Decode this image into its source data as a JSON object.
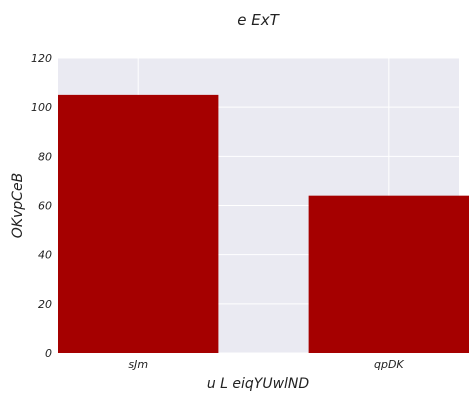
{
  "chart_data": {
    "type": "bar",
    "title": "e ExT",
    "xlabel": "u L eiqYUwlND",
    "ylabel": "OKvpCeB",
    "categories": [
      "sJm",
      "qpDK"
    ],
    "values": [
      105,
      64
    ],
    "ylim": [
      0,
      120
    ],
    "yticks": [
      0,
      20,
      40,
      60,
      80,
      100,
      120
    ],
    "grid": true,
    "legend": "none",
    "colors": {
      "bar": "#a50000",
      "plot_background": "#eaeaf2",
      "grid": "#ffffff"
    }
  }
}
